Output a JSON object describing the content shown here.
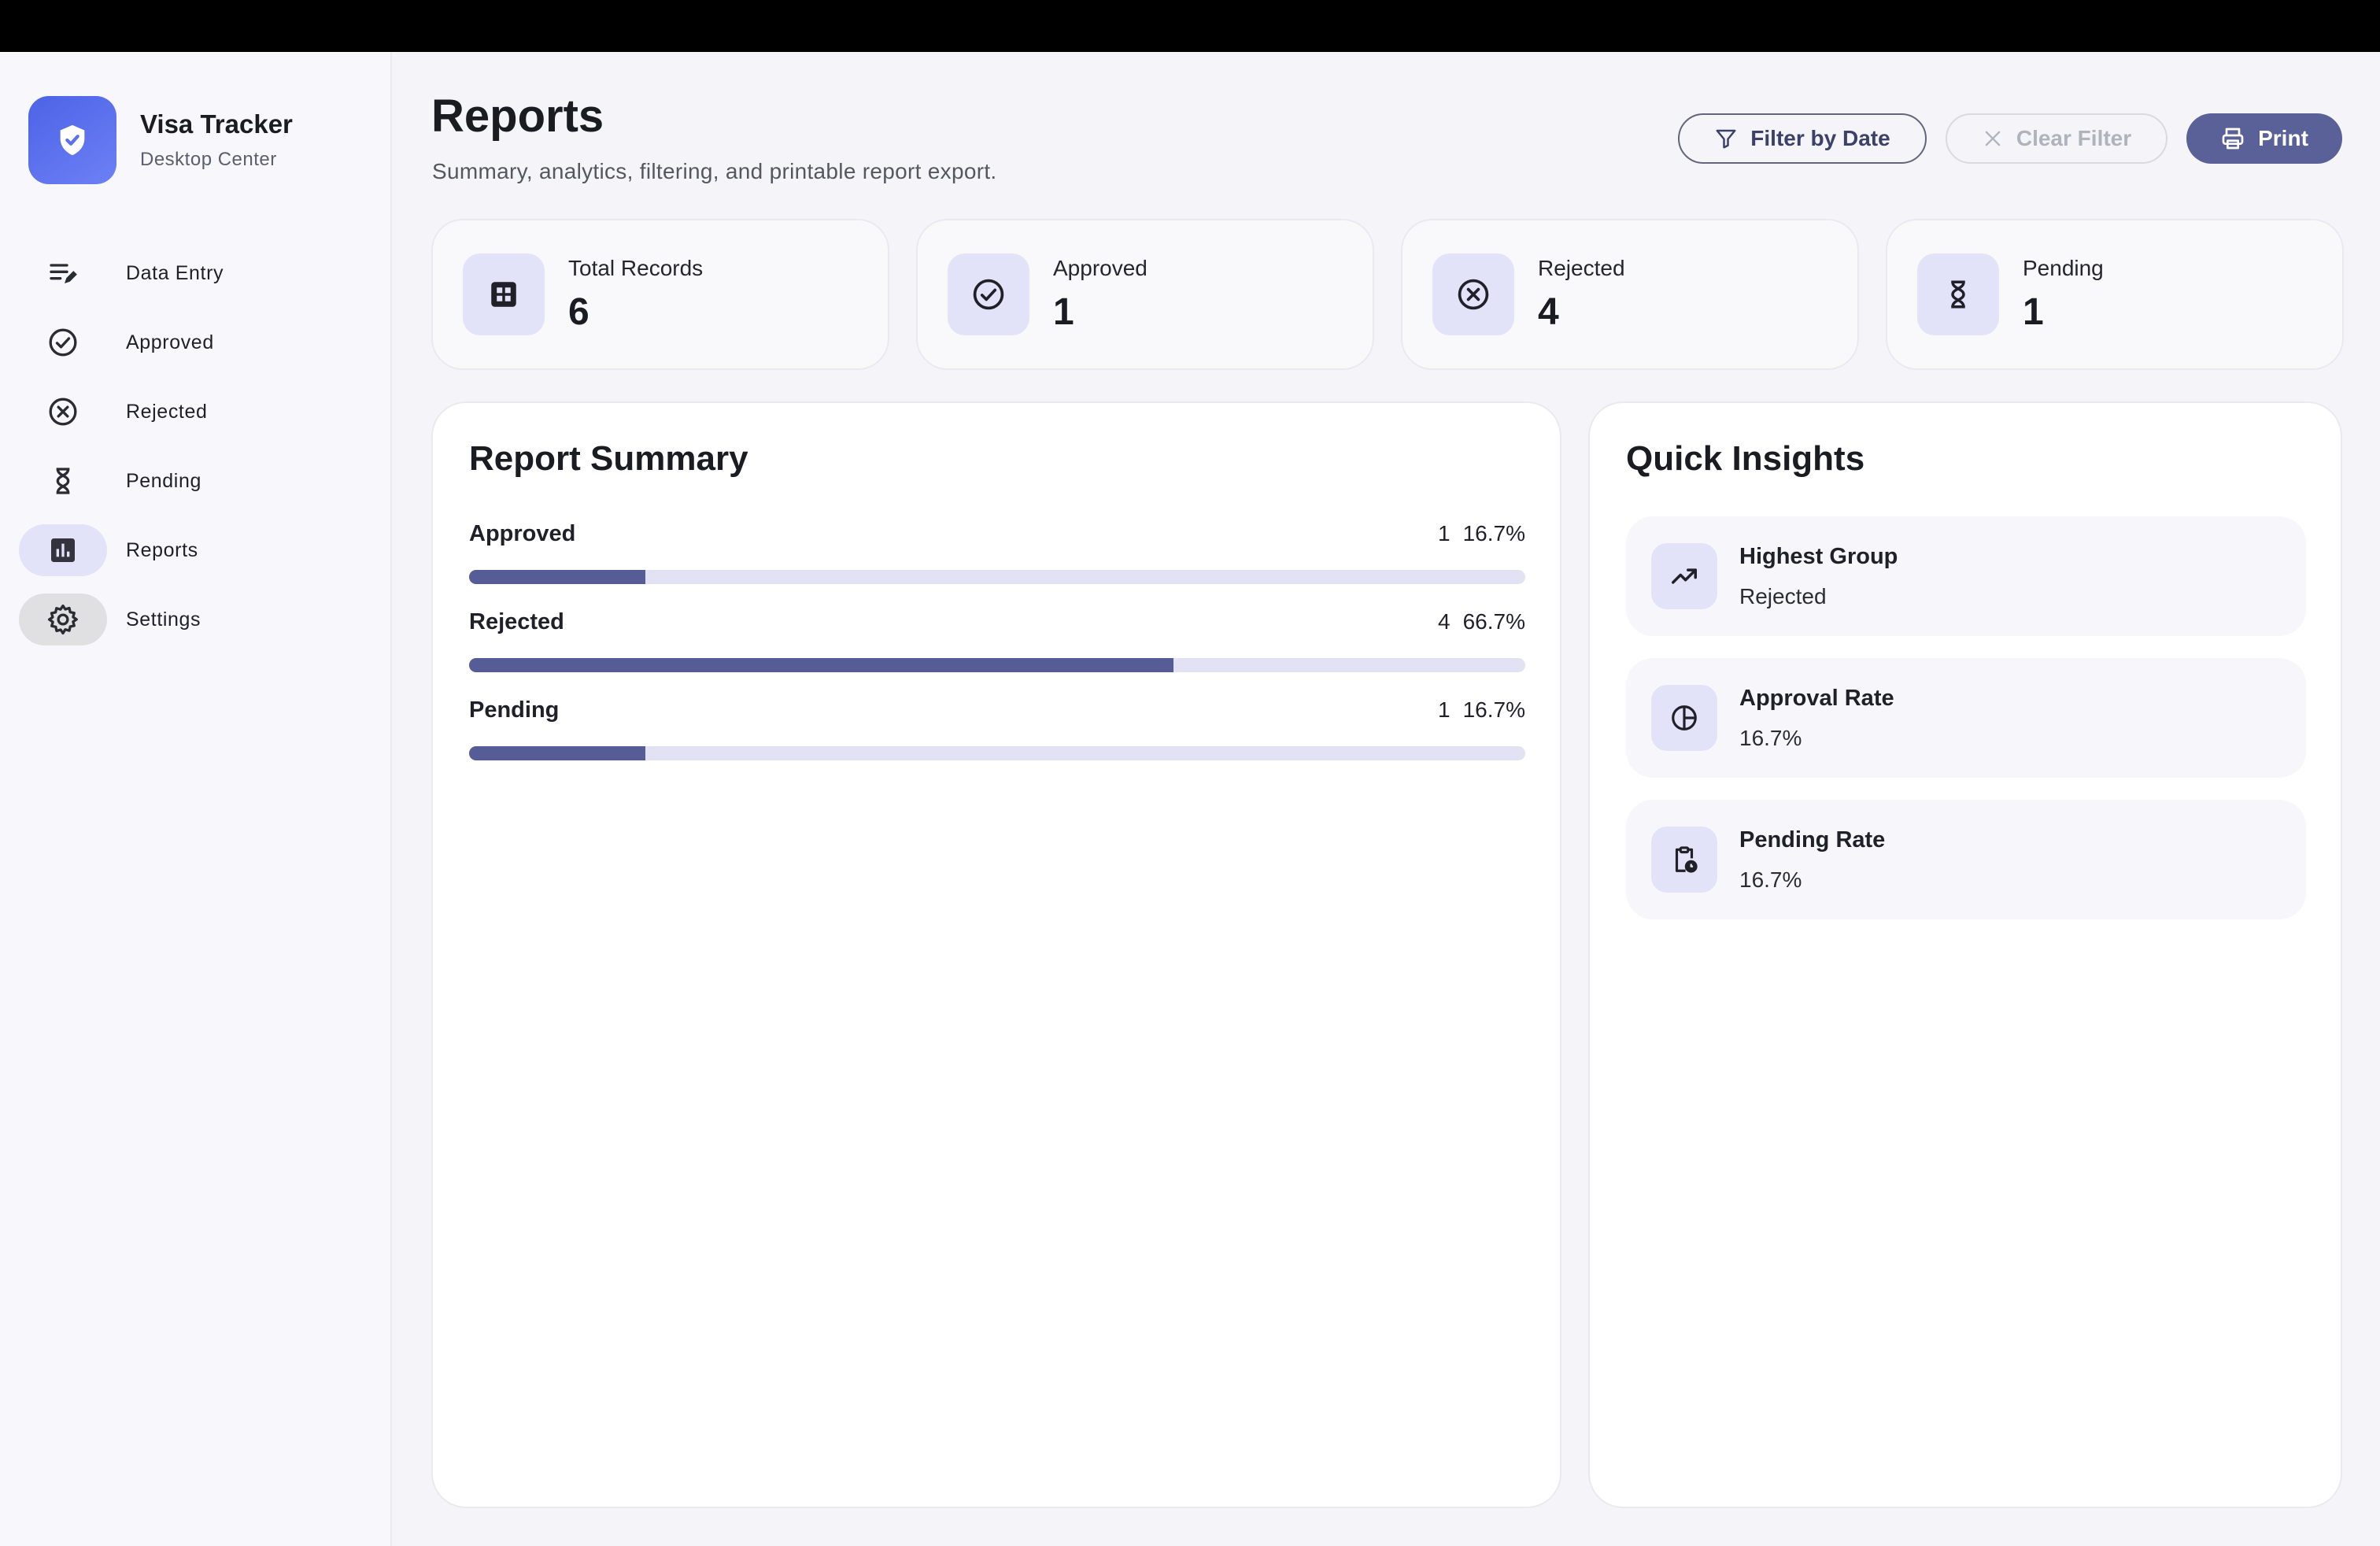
{
  "brand": {
    "title": "Visa Tracker",
    "subtitle": "Desktop Center"
  },
  "sidebar": {
    "items": [
      {
        "label": "Data Entry",
        "icon": "edit-list-icon"
      },
      {
        "label": "Approved",
        "icon": "check-circle-icon"
      },
      {
        "label": "Rejected",
        "icon": "x-circle-icon"
      },
      {
        "label": "Pending",
        "icon": "hourglass-icon"
      },
      {
        "label": "Reports",
        "icon": "bar-chart-icon",
        "active": true
      },
      {
        "label": "Settings",
        "icon": "gear-icon"
      }
    ]
  },
  "header": {
    "title": "Reports",
    "subtitle": "Summary, analytics, filtering, and printable report export."
  },
  "actions": {
    "filter_label": "Filter by Date",
    "clear_label": "Clear Filter",
    "print_label": "Print"
  },
  "stats": [
    {
      "label": "Total Records",
      "value": "6",
      "icon": "grid-icon"
    },
    {
      "label": "Approved",
      "value": "1",
      "icon": "check-circle-icon"
    },
    {
      "label": "Rejected",
      "value": "4",
      "icon": "x-circle-icon"
    },
    {
      "label": "Pending",
      "value": "1",
      "icon": "hourglass-icon"
    }
  ],
  "summary": {
    "title": "Report Summary",
    "rows": [
      {
        "label": "Approved",
        "count": "1",
        "percent": "16.7%",
        "fraction": 0.167
      },
      {
        "label": "Rejected",
        "count": "4",
        "percent": "66.7%",
        "fraction": 0.667
      },
      {
        "label": "Pending",
        "count": "1",
        "percent": "16.7%",
        "fraction": 0.167
      }
    ]
  },
  "insights": {
    "title": "Quick Insights",
    "items": [
      {
        "title": "Highest Group",
        "value": "Rejected",
        "icon": "trending-up-icon"
      },
      {
        "title": "Approval Rate",
        "value": "16.7%",
        "icon": "pie-chart-icon"
      },
      {
        "title": "Pending Rate",
        "value": "16.7%",
        "icon": "clipboard-clock-icon"
      }
    ]
  },
  "colors": {
    "accent": "#5a6199",
    "bar_fill": "#565d96",
    "bar_track": "#e2e2f4",
    "icon_bg": "#e2e2f8",
    "brand_logo": "#5b70ee"
  }
}
